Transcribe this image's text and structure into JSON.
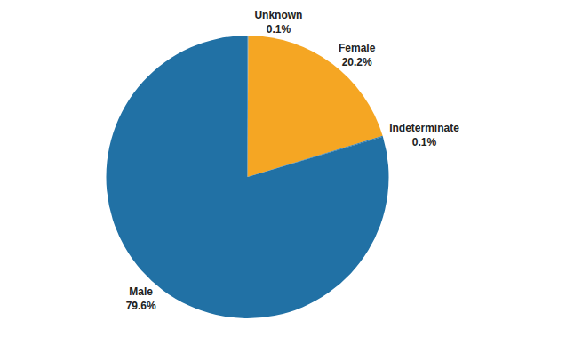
{
  "chart_data": {
    "type": "pie",
    "categories": [
      "Unknown",
      "Female",
      "Indeterminate",
      "Male"
    ],
    "values": [
      0.1,
      20.2,
      0.1,
      79.6
    ],
    "value_labels": [
      "0.1%",
      "20.2%",
      "0.1%",
      "79.6%"
    ],
    "colors": [
      "#2171a5",
      "#f5a623",
      "#2171a5",
      "#2171a5"
    ]
  }
}
